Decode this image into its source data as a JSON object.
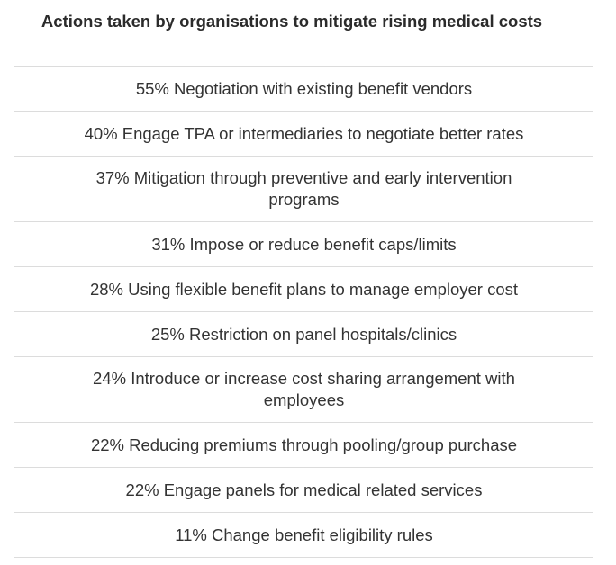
{
  "title": "Actions taken by organisations to mitigate rising medical costs",
  "rows": [
    {
      "text": "55% Negotiation with existing benefit vendors"
    },
    {
      "text": "40% Engage TPA or intermediaries to negotiate better rates"
    },
    {
      "text": "37% Mitigation through preventive and early intervention programs"
    },
    {
      "text": "31% Impose or reduce benefit caps/limits"
    },
    {
      "text": "28% Using flexible benefit plans to manage employer cost"
    },
    {
      "text": "25% Restriction on panel hospitals/clinics"
    },
    {
      "text": "24% Introduce or increase cost sharing arrangement with employees"
    },
    {
      "text": "22% Reducing premiums through pooling/group purchase"
    },
    {
      "text": "22% Engage panels for medical related services"
    },
    {
      "text": "11% Change benefit eligibility rules"
    }
  ]
}
